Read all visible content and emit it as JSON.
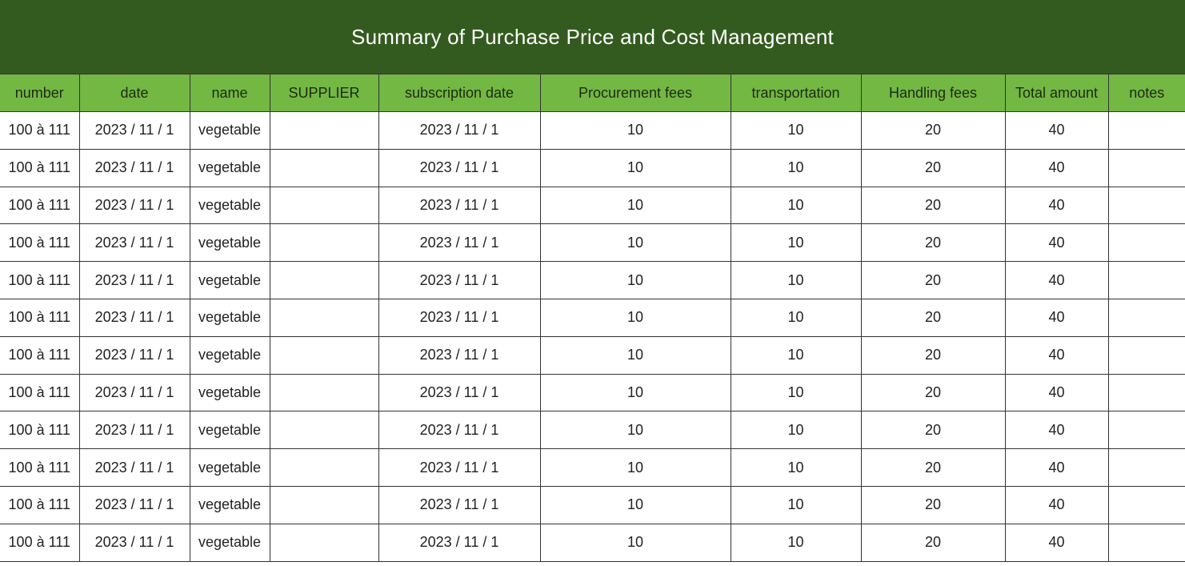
{
  "title": "Summary of Purchase Price and Cost Management",
  "columns": [
    "number",
    "date",
    "name",
    "SUPPLIER",
    "subscription date",
    "Procurement fees",
    "transportation",
    "Handling fees",
    "Total amount",
    "notes"
  ],
  "rows": [
    [
      "100 à 111",
      "2023 / 11 / 1",
      "vegetable",
      "",
      "2023 / 11 / 1",
      "10",
      "10",
      "20",
      "40",
      ""
    ],
    [
      "100 à 111",
      "2023 / 11 / 1",
      "vegetable",
      "",
      "2023 / 11 / 1",
      "10",
      "10",
      "20",
      "40",
      ""
    ],
    [
      "100 à 111",
      "2023 / 11 / 1",
      "vegetable",
      "",
      "2023 / 11 / 1",
      "10",
      "10",
      "20",
      "40",
      ""
    ],
    [
      "100 à 111",
      "2023 / 11 / 1",
      "vegetable",
      "",
      "2023 / 11 / 1",
      "10",
      "10",
      "20",
      "40",
      ""
    ],
    [
      "100 à 111",
      "2023 / 11 / 1",
      "vegetable",
      "",
      "2023 / 11 / 1",
      "10",
      "10",
      "20",
      "40",
      ""
    ],
    [
      "100 à 111",
      "2023 / 11 / 1",
      "vegetable",
      "",
      "2023 / 11 / 1",
      "10",
      "10",
      "20",
      "40",
      ""
    ],
    [
      "100 à 111",
      "2023 / 11 / 1",
      "vegetable",
      "",
      "2023 / 11 / 1",
      "10",
      "10",
      "20",
      "40",
      ""
    ],
    [
      "100 à 111",
      "2023 / 11 / 1",
      "vegetable",
      "",
      "2023 / 11 / 1",
      "10",
      "10",
      "20",
      "40",
      ""
    ],
    [
      "100 à 111",
      "2023 / 11 / 1",
      "vegetable",
      "",
      "2023 / 11 / 1",
      "10",
      "10",
      "20",
      "40",
      ""
    ],
    [
      "100 à 111",
      "2023 / 11 / 1",
      "vegetable",
      "",
      "2023 / 11 / 1",
      "10",
      "10",
      "20",
      "40",
      ""
    ],
    [
      "100 à 111",
      "2023 / 11 / 1",
      "vegetable",
      "",
      "2023 / 11 / 1",
      "10",
      "10",
      "20",
      "40",
      ""
    ],
    [
      "100 à 111",
      "2023 / 11 / 1",
      "vegetable",
      "",
      "2023 / 11 / 1",
      "10",
      "10",
      "20",
      "40",
      ""
    ]
  ],
  "colors": {
    "title_background": "#345b1f",
    "header_background": "#72b843",
    "grid_line": "#333333"
  }
}
